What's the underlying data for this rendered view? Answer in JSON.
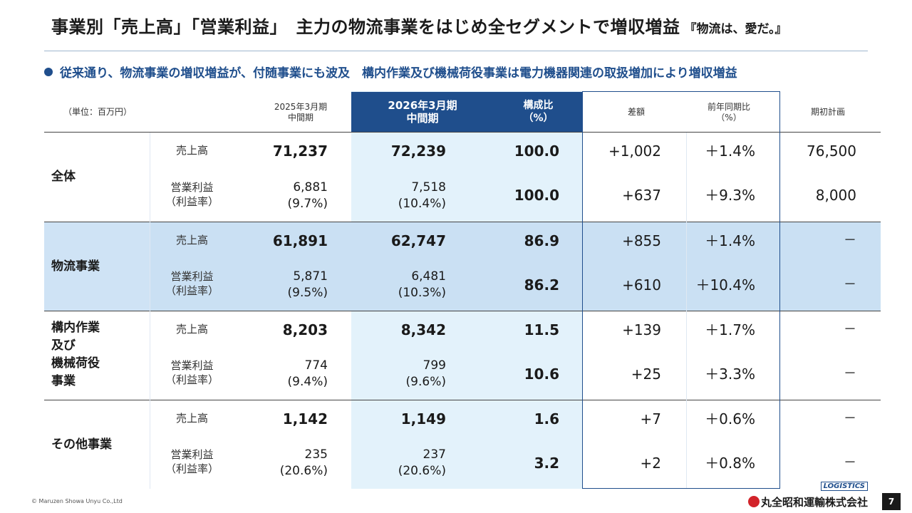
{
  "title": {
    "main": "事業別「売上高」「営業利益」　主力の物流事業をはじめ全セグメントで増収増益",
    "tag": "『物流は、愛だ。』"
  },
  "bullet": "従来通り、物流事業の増収増益が、付随事業にも波及　構内作業及び機械荷役事業は電力機器関連の取扱増加により増収増益",
  "header": {
    "unit": "（単位：百万円）",
    "prev_line1": "2025年3月期",
    "prev_line2": "中間期",
    "cur_line1": "2026年3月期",
    "cur_line2": "中間期",
    "ratio_line1": "構成比",
    "ratio_line2": "（%）",
    "diff": "差額",
    "yoy_line1": "前年同期比",
    "yoy_line2": "（%）",
    "plan": "期初計画"
  },
  "segments": [
    {
      "name_lines": [
        "全体"
      ],
      "sales": {
        "label": "売上高",
        "prev": "71,237",
        "cur": "72,239",
        "ratio": "100.0",
        "diff": "+1,002",
        "yoy": "＋1.4%",
        "plan": "76,500"
      },
      "profit": {
        "label1": "営業利益",
        "label2": "（利益率）",
        "prev1": "6,881",
        "prev2": "(9.7%)",
        "cur1": "7,518",
        "cur2": "(10.4%)",
        "ratio": "100.0",
        "diff": "+637",
        "yoy": "＋9.3%",
        "plan": "8,000"
      }
    },
    {
      "name_lines": [
        "物流事業"
      ],
      "sales": {
        "label": "売上高",
        "prev": "61,891",
        "cur": "62,747",
        "ratio": "86.9",
        "diff": "+855",
        "yoy": "＋1.4%",
        "plan": "－"
      },
      "profit": {
        "label1": "営業利益",
        "label2": "（利益率）",
        "prev1": "5,871",
        "prev2": "(9.5%)",
        "cur1": "6,481",
        "cur2": "(10.3%)",
        "ratio": "86.2",
        "diff": "+610",
        "yoy": "＋10.4%",
        "plan": "－"
      }
    },
    {
      "name_lines": [
        "構内作業",
        "及び",
        "機械荷役",
        "事業"
      ],
      "sales": {
        "label": "売上高",
        "prev": "8,203",
        "cur": "8,342",
        "ratio": "11.5",
        "diff": "+139",
        "yoy": "＋1.7%",
        "plan": "－"
      },
      "profit": {
        "label1": "営業利益",
        "label2": "（利益率）",
        "prev1": "774",
        "prev2": "(9.4%)",
        "cur1": "799",
        "cur2": "(9.6%)",
        "ratio": "10.6",
        "diff": "+25",
        "yoy": "＋3.3%",
        "plan": "－"
      }
    },
    {
      "name_lines": [
        "その他事業"
      ],
      "sales": {
        "label": "売上高",
        "prev": "1,142",
        "cur": "1,149",
        "ratio": "1.6",
        "diff": "+7",
        "yoy": "＋0.6%",
        "plan": "－"
      },
      "profit": {
        "label1": "営業利益",
        "label2": "（利益率）",
        "prev1": "235",
        "prev2": "(20.6%)",
        "cur1": "237",
        "cur2": "(20.6%)",
        "ratio": "3.2",
        "diff": "+2",
        "yoy": "＋0.8%",
        "plan": "－"
      }
    }
  ],
  "footer": {
    "copyright": "© Maruzen Showa Unyu Co.,Ltd",
    "logo_mark": "LOGISTICS",
    "company": "丸全昭和運輸株式会社",
    "page": "7"
  },
  "colors": {
    "accent": "#1f4e8c",
    "band_light": "#e3f2fb",
    "band_blue": "#cfe3f5"
  }
}
